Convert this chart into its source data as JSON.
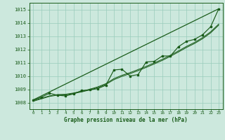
{
  "title": "Graphe pression niveau de la mer (hPa)",
  "hours": [
    0,
    1,
    2,
    3,
    4,
    5,
    6,
    7,
    8,
    9,
    10,
    11,
    12,
    13,
    14,
    15,
    16,
    17,
    18,
    19,
    20,
    21,
    22,
    23
  ],
  "pressure_data": [
    1008.2,
    1008.4,
    1008.7,
    1008.55,
    1008.5,
    1008.65,
    1008.9,
    1008.95,
    1009.05,
    1009.3,
    1010.45,
    1010.5,
    1010.0,
    1010.1,
    1011.05,
    1011.1,
    1011.5,
    1011.5,
    1012.2,
    1012.6,
    1012.75,
    1013.1,
    1013.7,
    1015.05
  ],
  "smooth_line1": [
    1008.15,
    1008.32,
    1008.5,
    1008.6,
    1008.62,
    1008.72,
    1008.85,
    1009.0,
    1009.18,
    1009.42,
    1009.8,
    1010.05,
    1010.25,
    1010.48,
    1010.72,
    1010.98,
    1011.25,
    1011.55,
    1011.88,
    1012.22,
    1012.52,
    1012.88,
    1013.32,
    1013.9
  ],
  "smooth_line2": [
    1008.1,
    1008.28,
    1008.46,
    1008.56,
    1008.58,
    1008.68,
    1008.8,
    1008.95,
    1009.12,
    1009.36,
    1009.72,
    1009.97,
    1010.17,
    1010.4,
    1010.64,
    1010.9,
    1011.17,
    1011.47,
    1011.8,
    1012.14,
    1012.44,
    1012.8,
    1013.24,
    1013.82
  ],
  "straight_line_x": [
    0,
    23
  ],
  "straight_line_y": [
    1008.2,
    1015.05
  ],
  "ylim": [
    1007.5,
    1015.5
  ],
  "xlim": [
    -0.5,
    23.5
  ],
  "yticks": [
    1008,
    1009,
    1010,
    1011,
    1012,
    1013,
    1014,
    1015
  ],
  "xticks": [
    0,
    1,
    2,
    3,
    4,
    5,
    6,
    7,
    8,
    9,
    10,
    11,
    12,
    13,
    14,
    15,
    16,
    17,
    18,
    19,
    20,
    21,
    22,
    23
  ],
  "bg_color": "#cce8dd",
  "line_color": "#1a5c1a",
  "grid_color": "#99ccbb"
}
